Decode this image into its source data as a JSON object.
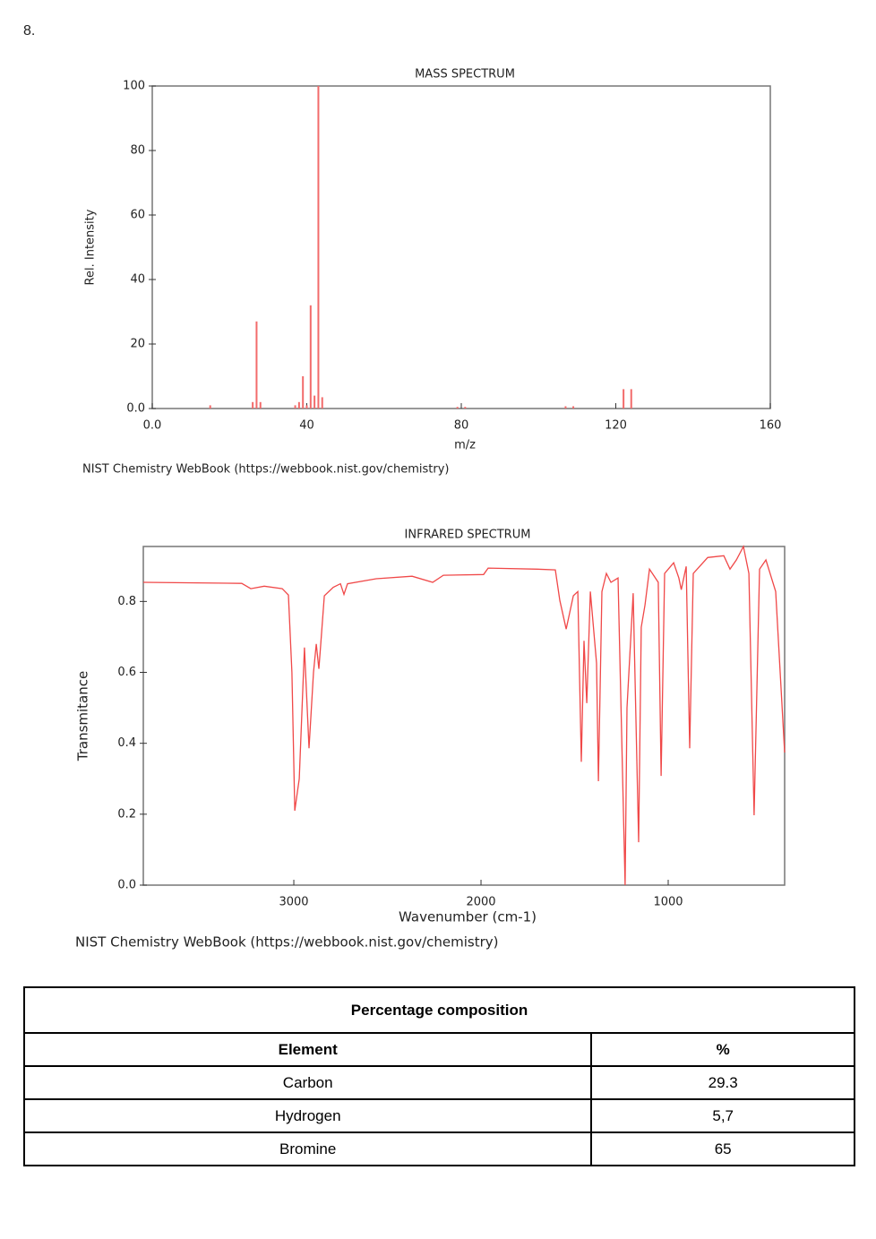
{
  "number": "8.",
  "chart_data": [
    {
      "type": "bar",
      "title": "MASS SPECTRUM",
      "xlabel": "m/z",
      "ylabel": "Rel. Intensity",
      "credit": "NIST Chemistry WebBook (https://webbook.nist.gov/chemistry)",
      "x": [
        15,
        26,
        27,
        28,
        37,
        38,
        39,
        40,
        41,
        42,
        43,
        44,
        79,
        81,
        107,
        109,
        122,
        124
      ],
      "values": [
        1,
        2,
        27,
        2,
        1,
        2,
        10,
        1,
        32,
        4,
        100,
        3.5,
        0.5,
        0.5,
        0.7,
        0.7,
        6,
        6
      ],
      "color": "#f26b6b",
      "xlim": [
        0,
        160
      ],
      "xticks": [
        {
          "value": 0,
          "label": "0.0"
        },
        40,
        80,
        120,
        160
      ],
      "ylim": [
        0,
        100
      ],
      "yticks": [
        {
          "value": 0,
          "label": "0.0"
        },
        20,
        40,
        60,
        80,
        100
      ],
      "grid": false
    },
    {
      "type": "line",
      "title": "INFRARED SPECTRUM",
      "xlabel": "Wavenumber (cm-1)",
      "ylabel": "Transmitance",
      "credit": "NIST Chemistry WebBook (https://webbook.nist.gov/chemistry)",
      "x": [
        3804,
        3278,
        3230,
        3158,
        3062,
        3029,
        3010,
        2995,
        2971,
        2943,
        2919,
        2895,
        2880,
        2866,
        2856,
        2837,
        2789,
        2751,
        2732,
        2713,
        2560,
        2368,
        2258,
        2201,
        1986,
        1962,
        1699,
        1603,
        1579,
        1545,
        1507,
        1483,
        1464,
        1450,
        1435,
        1416,
        1383,
        1373,
        1354,
        1330,
        1306,
        1268,
        1230,
        1220,
        1187,
        1158,
        1144,
        1124,
        1100,
        1053,
        1038,
        1019,
        971,
        943,
        930,
        904,
        885,
        866,
        789,
        703,
        670,
        636,
        598,
        569,
        541,
        512,
        478,
        426,
        378
      ],
      "values": [
        0.854,
        0.851,
        0.836,
        0.843,
        0.836,
        0.818,
        0.6,
        0.21,
        0.3,
        0.67,
        0.386,
        0.6,
        0.68,
        0.61,
        0.68,
        0.816,
        0.84,
        0.85,
        0.82,
        0.85,
        0.864,
        0.871,
        0.854,
        0.874,
        0.876,
        0.894,
        0.891,
        0.889,
        0.803,
        0.722,
        0.816,
        0.828,
        0.348,
        0.689,
        0.513,
        0.828,
        0.626,
        0.293,
        0.828,
        0.879,
        0.854,
        0.866,
        0.0,
        0.5,
        0.823,
        0.121,
        0.727,
        0.79,
        0.891,
        0.854,
        0.308,
        0.879,
        0.909,
        0.866,
        0.833,
        0.899,
        0.386,
        0.879,
        0.924,
        0.929,
        0.891,
        0.917,
        0.955,
        0.879,
        0.197,
        0.891,
        0.917,
        0.828,
        0.374
      ],
      "color": "#f04848",
      "xlim": [
        3804,
        378
      ],
      "xticks": [
        3000,
        2000,
        1000
      ],
      "ylim": [
        0,
        0.955
      ],
      "yticks": [
        {
          "value": 0,
          "label": "0.0"
        },
        0.2,
        0.4,
        0.6,
        0.8
      ],
      "grid": false
    }
  ],
  "table": {
    "title": "Percentage composition",
    "header": [
      "Element",
      "%"
    ],
    "rows": [
      [
        "Carbon",
        "29.3"
      ],
      [
        "Hydrogen",
        "5,7"
      ],
      [
        "Bromine",
        "65"
      ]
    ]
  }
}
